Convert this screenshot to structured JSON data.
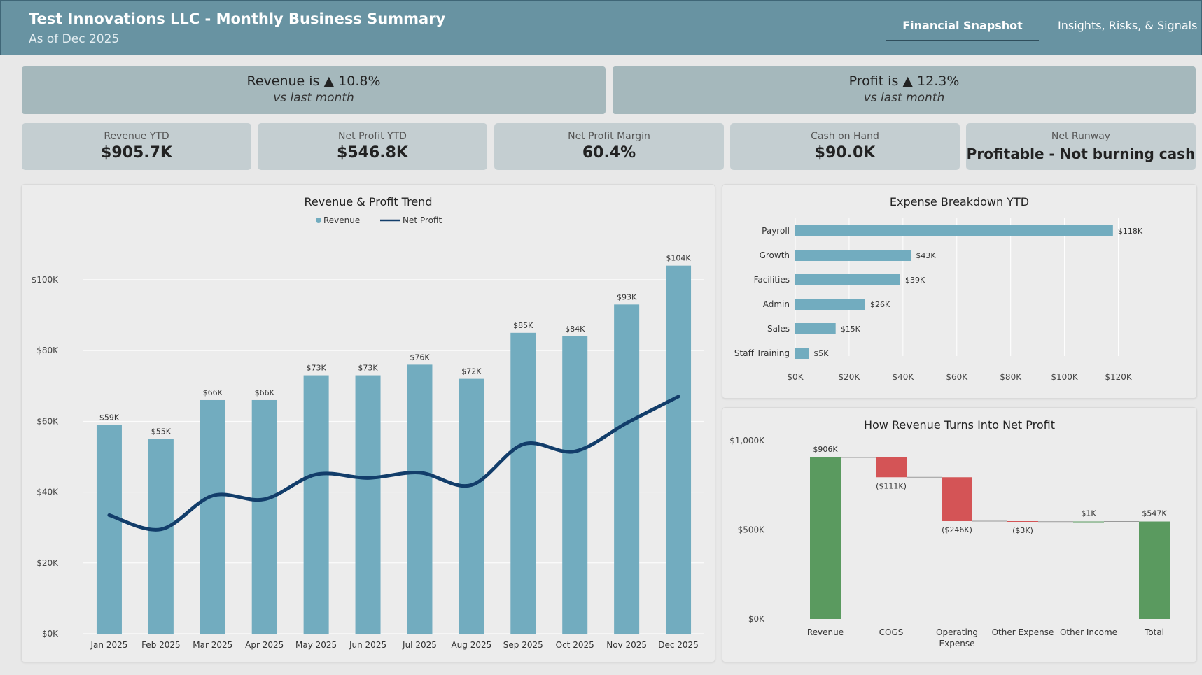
{
  "header": {
    "title": "Test Innovations LLC - Monthly Business Summary",
    "subtitle": "As of Dec 2025",
    "tabs": [
      "Financial Snapshot",
      "Insights, Risks, & Signals"
    ]
  },
  "banners": [
    {
      "main": "Revenue is ▲ 10.8%",
      "sub": "vs last month"
    },
    {
      "main": "Profit is ▲ 12.3%",
      "sub": "vs last month"
    }
  ],
  "kpis": [
    {
      "label": "Revenue YTD",
      "value": "$905.7K"
    },
    {
      "label": "Net Profit YTD",
      "value": "$546.8K"
    },
    {
      "label": "Net Profit Margin",
      "value": "60.4%"
    },
    {
      "label": "Cash on Hand",
      "value": "$90.0K"
    },
    {
      "label": "Net Runway",
      "value": "Profitable - Not burning cash"
    }
  ],
  "colors": {
    "revenue_bar": "#72acbf",
    "profit_line": "#123d6a",
    "positive": "#5a9a5f",
    "negative": "#d45456",
    "header": "#6893a2"
  },
  "chart_data": [
    {
      "type": "bar",
      "title": "Revenue & Profit Trend",
      "legend": [
        "Revenue",
        "Net Profit"
      ],
      "legend_position": "top-center",
      "categories": [
        "Jan 2025",
        "Feb 2025",
        "Mar 2025",
        "Apr 2025",
        "May 2025",
        "Jun 2025",
        "Jul 2025",
        "Aug 2025",
        "Sep 2025",
        "Oct 2025",
        "Nov 2025",
        "Dec 2025"
      ],
      "series": [
        {
          "name": "Revenue",
          "type": "bar",
          "values": [
            59,
            55,
            66,
            66,
            73,
            73,
            76,
            72,
            85,
            84,
            93,
            104
          ],
          "labels": [
            "$59K",
            "$55K",
            "$66K",
            "$66K",
            "$73K",
            "$73K",
            "$76K",
            "$72K",
            "$85K",
            "$84K",
            "$93K",
            "$104K"
          ]
        },
        {
          "name": "Net Profit",
          "type": "line",
          "values": [
            33.5,
            29.5,
            39,
            38,
            45,
            44,
            45.5,
            42,
            53.5,
            51.5,
            59.5,
            67
          ]
        }
      ],
      "yticks": [
        "$0K",
        "$20K",
        "$40K",
        "$60K",
        "$80K",
        "$100K"
      ],
      "ylim": [
        0,
        115
      ],
      "grid": true
    },
    {
      "type": "bar",
      "orientation": "horizontal",
      "title": "Expense Breakdown YTD",
      "categories": [
        "Payroll",
        "Growth",
        "Facilities",
        "Admin",
        "Sales",
        "Staff Training"
      ],
      "values": [
        118,
        43,
        39,
        26,
        15,
        5
      ],
      "labels": [
        "$118K",
        "$43K",
        "$39K",
        "$26K",
        "$15K",
        "$5K"
      ],
      "xticks": [
        "$0K",
        "$20K",
        "$40K",
        "$60K",
        "$80K",
        "$100K",
        "$120K"
      ],
      "xlim": [
        0,
        130
      ],
      "grid": true
    },
    {
      "type": "waterfall",
      "title": "How Revenue Turns Into Net Profit",
      "categories": [
        "Revenue",
        "COGS",
        "Operating Expense",
        "Other Expense",
        "Other Income",
        "Total"
      ],
      "values": [
        906,
        -111,
        -246,
        -3,
        1,
        547
      ],
      "labels": [
        "$906K",
        "($111K)",
        "($246K)",
        "($3K)",
        "$1K",
        "$547K"
      ],
      "kinds": [
        "total",
        "decrease",
        "decrease",
        "decrease",
        "increase",
        "total"
      ],
      "yticks": [
        "$0K",
        "$500K",
        "$1,000K"
      ],
      "ylim": [
        0,
        1000
      ]
    }
  ]
}
